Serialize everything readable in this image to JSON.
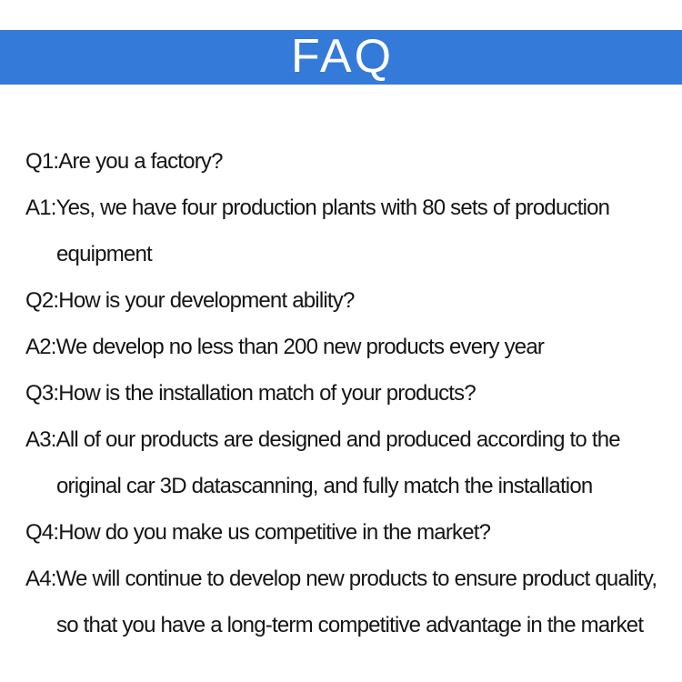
{
  "banner": {
    "title": "FAQ"
  },
  "colors": {
    "banner_blue": "#347ad8",
    "title_white": "#ffffff",
    "body_text": "#151515",
    "page_background": "#ffffff"
  },
  "faq": {
    "lines": [
      {
        "text": "Q1:Are you a factory?"
      },
      {
        "text": "A1:Yes, we have four production plants with 80 sets of production"
      },
      {
        "text": "equipment"
      },
      {
        "text": "Q2:How is your development ability?"
      },
      {
        "text": "A2:We develop no less than 200 new products every year"
      },
      {
        "text": "Q3:How is the installation match of your products?"
      },
      {
        "text": "A3:All of our products are designed and produced according to the"
      },
      {
        "text": "original car 3D datascanning, and fully match the installation"
      },
      {
        "text": "Q4:How do you make us competitive in the market?"
      },
      {
        "text": "A4:We will continue to develop new products to ensure product quality,"
      },
      {
        "text": "so that you have a long-term competitive advantage in the market"
      }
    ]
  }
}
